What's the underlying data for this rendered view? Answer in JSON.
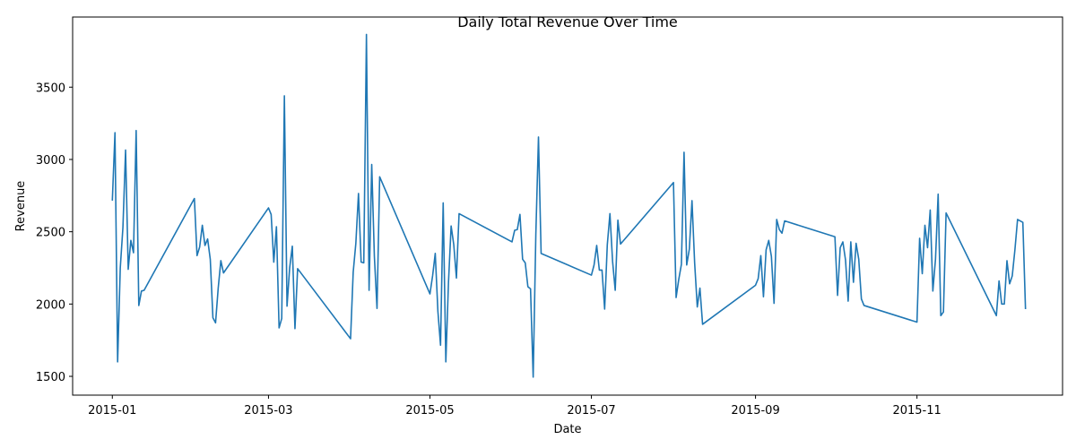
{
  "chart_data": {
    "type": "line",
    "title": "Daily Total Revenue Over Time",
    "xlabel": "Date",
    "ylabel": "Revenue",
    "x_ticks": [
      "2015-01",
      "2015-03",
      "2015-05",
      "2015-07",
      "2015-09",
      "2015-11"
    ],
    "y_ticks": [
      1500,
      2000,
      2500,
      3000,
      3500
    ],
    "xlim": [
      "2014-12-17",
      "2015-12-26"
    ],
    "ylim": [
      1370,
      3985
    ],
    "grid": false,
    "line_color": "#1f77b4",
    "series": [
      {
        "x": [
          "2015-01-01",
          "2015-01-02",
          "2015-01-03",
          "2015-01-04",
          "2015-01-05",
          "2015-01-06",
          "2015-01-07",
          "2015-01-08",
          "2015-01-09",
          "2015-01-10",
          "2015-01-11",
          "2015-01-12",
          "2015-01-13",
          "2015-02-01",
          "2015-02-02",
          "2015-02-03",
          "2015-02-04",
          "2015-02-05",
          "2015-02-06",
          "2015-02-07",
          "2015-02-08",
          "2015-02-09",
          "2015-02-10",
          "2015-02-11",
          "2015-02-12",
          "2015-03-01",
          "2015-03-02",
          "2015-03-03",
          "2015-03-04",
          "2015-03-05",
          "2015-03-06",
          "2015-03-07",
          "2015-03-08",
          "2015-03-09",
          "2015-03-10",
          "2015-03-11",
          "2015-03-12",
          "2015-04-01",
          "2015-04-02",
          "2015-04-03",
          "2015-04-04",
          "2015-04-05",
          "2015-04-06",
          "2015-04-07",
          "2015-04-08",
          "2015-04-09",
          "2015-04-10",
          "2015-04-11",
          "2015-04-12",
          "2015-05-01",
          "2015-05-02",
          "2015-05-03",
          "2015-05-04",
          "2015-05-05",
          "2015-05-06",
          "2015-05-07",
          "2015-05-08",
          "2015-05-09",
          "2015-05-10",
          "2015-05-11",
          "2015-05-12",
          "2015-06-01",
          "2015-06-02",
          "2015-06-03",
          "2015-06-04",
          "2015-06-05",
          "2015-06-06",
          "2015-06-07",
          "2015-06-08",
          "2015-06-09",
          "2015-06-10",
          "2015-06-11",
          "2015-06-12",
          "2015-07-01",
          "2015-07-02",
          "2015-07-03",
          "2015-07-04",
          "2015-07-05",
          "2015-07-06",
          "2015-07-07",
          "2015-07-08",
          "2015-07-09",
          "2015-07-10",
          "2015-07-11",
          "2015-07-12",
          "2015-08-01",
          "2015-08-02",
          "2015-08-03",
          "2015-08-04",
          "2015-08-05",
          "2015-08-06",
          "2015-08-07",
          "2015-08-08",
          "2015-08-09",
          "2015-08-10",
          "2015-08-11",
          "2015-08-12",
          "2015-09-01",
          "2015-09-02",
          "2015-09-03",
          "2015-09-04",
          "2015-09-05",
          "2015-09-06",
          "2015-09-07",
          "2015-09-08",
          "2015-09-09",
          "2015-09-10",
          "2015-09-11",
          "2015-09-12",
          "2015-10-01",
          "2015-10-02",
          "2015-10-03",
          "2015-10-04",
          "2015-10-05",
          "2015-10-06",
          "2015-10-07",
          "2015-10-08",
          "2015-10-09",
          "2015-10-10",
          "2015-10-11",
          "2015-10-12",
          "2015-11-01",
          "2015-11-02",
          "2015-11-03",
          "2015-11-04",
          "2015-11-05",
          "2015-11-06",
          "2015-11-07",
          "2015-11-08",
          "2015-11-09",
          "2015-11-10",
          "2015-11-11",
          "2015-11-12",
          "2015-12-01",
          "2015-12-02",
          "2015-12-03",
          "2015-12-04",
          "2015-12-05",
          "2015-12-06",
          "2015-12-07",
          "2015-12-08",
          "2015-12-09",
          "2015-12-10",
          "2015-12-11",
          "2015-12-12"
        ],
        "values": [
          2715,
          3185,
          1600,
          2250,
          2530,
          3065,
          2240,
          2440,
          2355,
          3200,
          1990,
          2090,
          2095,
          2730,
          2335,
          2395,
          2545,
          2405,
          2450,
          2310,
          1905,
          1870,
          2110,
          2300,
          2215,
          2665,
          2620,
          2290,
          2535,
          1835,
          1900,
          3440,
          1985,
          2250,
          2400,
          1830,
          2245,
          1760,
          2220,
          2420,
          2765,
          2290,
          2285,
          3865,
          2095,
          2965,
          2330,
          1970,
          2880,
          2070,
          2195,
          2350,
          1950,
          1715,
          2700,
          1600,
          2150,
          2540,
          2410,
          2180,
          2625,
          2430,
          2510,
          2515,
          2620,
          2310,
          2285,
          2120,
          2105,
          1495,
          2480,
          3155,
          2350,
          2200,
          2270,
          2405,
          2235,
          2235,
          1965,
          2410,
          2625,
          2295,
          2095,
          2580,
          2415,
          2840,
          2045,
          2170,
          2275,
          3050,
          2270,
          2380,
          2715,
          2285,
          1980,
          2110,
          1860,
          2130,
          2175,
          2335,
          2050,
          2375,
          2440,
          2330,
          2005,
          2585,
          2515,
          2490,
          2575,
          2465,
          2060,
          2390,
          2430,
          2305,
          2020,
          2430,
          2150,
          2420,
          2310,
          2035,
          1990,
          1875,
          2455,
          2210,
          2545,
          2390,
          2650,
          2090,
          2310,
          2760,
          1920,
          1945,
          2630,
          1920,
          2160,
          2000,
          2000,
          2300,
          2140,
          2195,
          2375,
          2585,
          2575,
          2565,
          1965
        ]
      }
    ]
  }
}
